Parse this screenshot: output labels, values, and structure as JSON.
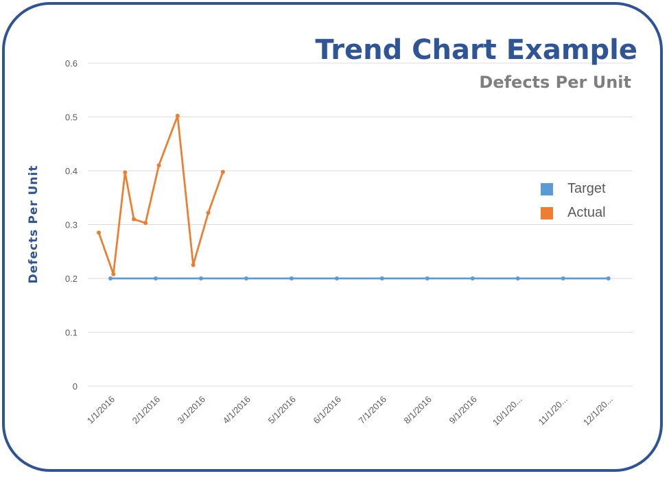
{
  "chart_data": {
    "type": "line",
    "title": "Trend Chart Example",
    "subtitle": "Defects Per Unit",
    "xlabel": "",
    "ylabel": "Defects  Per  Unit",
    "ylim": [
      0,
      0.6
    ],
    "yticks": [
      "0",
      "0.1",
      "0.2",
      "0.3",
      "0.4",
      "0.5",
      "0.6"
    ],
    "x_tick_labels": [
      "1/1/2016",
      "2/1/2016",
      "3/1/2016",
      "4/1/2016",
      "5/1/2016",
      "6/1/2016",
      "7/1/2016",
      "8/1/2016",
      "9/1/2016",
      "10/1/20...",
      "11/1/20...",
      "12/1/20..."
    ],
    "grid": true,
    "legend_position": "right",
    "series": [
      {
        "name": "Target",
        "color": "#5b9bd5",
        "points": [
          {
            "x": "2016-01-01",
            "y": 0.2
          },
          {
            "x": "2016-02-01",
            "y": 0.2
          },
          {
            "x": "2016-03-01",
            "y": 0.2
          },
          {
            "x": "2016-04-01",
            "y": 0.2
          },
          {
            "x": "2016-05-01",
            "y": 0.2
          },
          {
            "x": "2016-06-01",
            "y": 0.2
          },
          {
            "x": "2016-07-01",
            "y": 0.2
          },
          {
            "x": "2016-08-01",
            "y": 0.2
          },
          {
            "x": "2016-09-01",
            "y": 0.2
          },
          {
            "x": "2016-10-01",
            "y": 0.2
          },
          {
            "x": "2016-11-01",
            "y": 0.2
          },
          {
            "x": "2016-12-01",
            "y": 0.2
          }
        ]
      },
      {
        "name": "Actual",
        "color": "#ed7d31",
        "points": [
          {
            "x": "2015-12-24",
            "y": 0.285
          },
          {
            "x": "2016-01-03",
            "y": 0.208
          },
          {
            "x": "2016-01-11",
            "y": 0.397
          },
          {
            "x": "2016-01-17",
            "y": 0.31
          },
          {
            "x": "2016-01-25",
            "y": 0.303
          },
          {
            "x": "2016-02-03",
            "y": 0.41
          },
          {
            "x": "2016-02-15",
            "y": 0.502
          },
          {
            "x": "2016-02-25",
            "y": 0.225
          },
          {
            "x": "2016-03-06",
            "y": 0.322
          },
          {
            "x": "2016-03-16",
            "y": 0.398
          }
        ]
      }
    ]
  }
}
